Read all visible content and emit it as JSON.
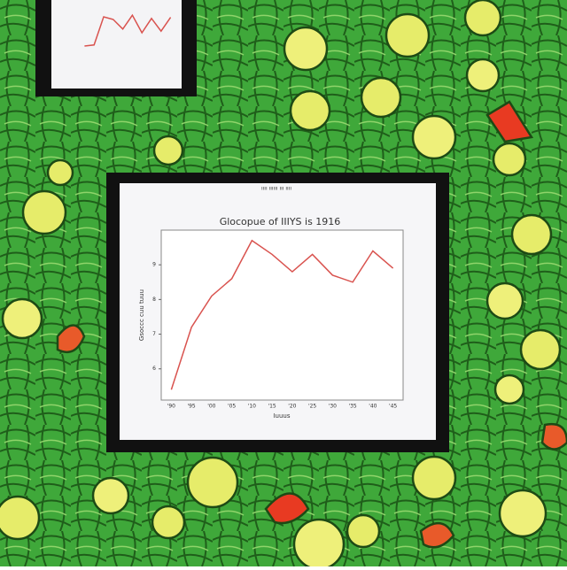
{
  "chart_data": [
    {
      "type": "line",
      "title": "Glocopue of IIIYS is 1916",
      "subtitle": "ıııı ıııııı ııı ıııı",
      "x_label": "Iuuus",
      "y_label": "Gsoccc cuu tuuu",
      "categories": [
        "'90",
        "'95",
        "'00",
        "'05",
        "'10",
        "'15",
        "'20",
        "'25",
        "'30",
        "'35",
        "'40",
        "'45"
      ],
      "values": [
        5.4,
        7.2,
        8.1,
        8.6,
        9.7,
        9.3,
        8.8,
        9.3,
        8.7,
        8.5,
        9.4,
        8.9
      ],
      "color": "#d9534f",
      "ylim": [
        5.1,
        10
      ],
      "yticks": [
        6,
        7,
        8,
        9
      ]
    },
    {
      "type": "line",
      "categories": [
        null,
        null,
        null,
        null,
        null,
        null,
        null,
        null,
        null,
        null
      ],
      "values": [
        3,
        3.2,
        8.5,
        8,
        6.2,
        8.8,
        5.5,
        8.2,
        5.8,
        8.4
      ],
      "color": "#d9534f",
      "ylim": [
        0,
        10
      ],
      "yticks": []
    }
  ]
}
